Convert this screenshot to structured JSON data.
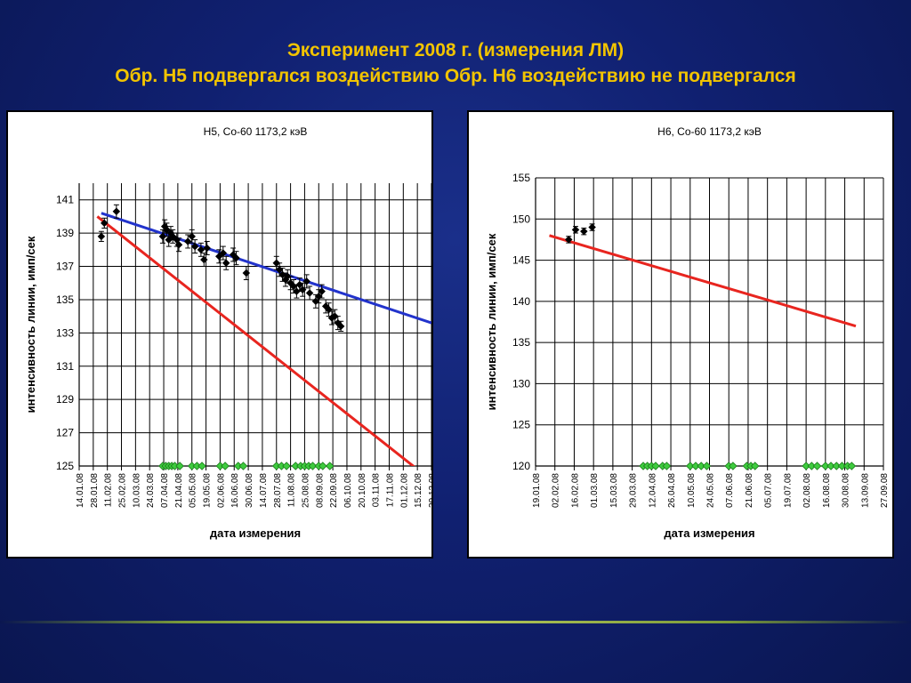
{
  "slide": {
    "title_line1": "Эксперимент 2008 г. (измерения ЛМ)",
    "title_line2": "Обр. Н5 подвергался воздействию   Обр. Н6 воздействию не подвергался",
    "background_color": "#102070",
    "title_color": "#f2c400"
  },
  "chart_data": [
    {
      "type": "scatter",
      "title": "Н5, Co-60 1173,2 кэВ",
      "xlabel": "дата измерения",
      "ylabel": "интенсивность линии, имп/сек",
      "x_ticks": [
        "14.01.08",
        "28.01.08",
        "11.02.08",
        "25.02.08",
        "10.03.08",
        "24.03.08",
        "07.04.08",
        "21.04.08",
        "05.05.08",
        "19.05.08",
        "02.06.08",
        "16.06.08",
        "30.06.08",
        "14.07.08",
        "28.07.08",
        "11.08.08",
        "25.08.08",
        "08.09.08",
        "22.09.08",
        "06.10.08",
        "20.10.08",
        "03.11.08",
        "17.11.08",
        "01.12.08",
        "15.12.08",
        "29.12.08"
      ],
      "xlim": [
        "2008-01-14",
        "2008-12-29"
      ],
      "y_ticks": [
        125,
        127,
        129,
        131,
        133,
        135,
        137,
        139,
        141
      ],
      "ylim": [
        125,
        142
      ],
      "grid": true,
      "measurements": [
        {
          "x": "2008-02-05",
          "y": 138.8,
          "err": 0.3
        },
        {
          "x": "2008-02-08",
          "y": 139.6,
          "err": 0.3
        },
        {
          "x": "2008-02-20",
          "y": 140.3,
          "err": 0.4
        },
        {
          "x": "2008-04-06",
          "y": 138.8,
          "err": 0.4
        },
        {
          "x": "2008-04-08",
          "y": 139.4,
          "err": 0.4
        },
        {
          "x": "2008-04-10",
          "y": 139.2,
          "err": 0.4
        },
        {
          "x": "2008-04-12",
          "y": 138.6,
          "err": 0.4
        },
        {
          "x": "2008-04-14",
          "y": 139.0,
          "err": 0.4
        },
        {
          "x": "2008-04-16",
          "y": 138.8,
          "err": 0.4
        },
        {
          "x": "2008-04-20",
          "y": 138.6,
          "err": 0.4
        },
        {
          "x": "2008-04-22",
          "y": 138.3,
          "err": 0.4
        },
        {
          "x": "2008-05-01",
          "y": 138.5,
          "err": 0.4
        },
        {
          "x": "2008-05-05",
          "y": 138.8,
          "err": 0.4
        },
        {
          "x": "2008-05-08",
          "y": 138.2,
          "err": 0.4
        },
        {
          "x": "2008-05-14",
          "y": 138.0,
          "err": 0.4
        },
        {
          "x": "2008-05-17",
          "y": 137.4,
          "err": 0.4
        },
        {
          "x": "2008-05-20",
          "y": 138.1,
          "err": 0.4
        },
        {
          "x": "2008-06-01",
          "y": 137.6,
          "err": 0.4
        },
        {
          "x": "2008-06-05",
          "y": 137.8,
          "err": 0.4
        },
        {
          "x": "2008-06-08",
          "y": 137.2,
          "err": 0.4
        },
        {
          "x": "2008-06-15",
          "y": 137.7,
          "err": 0.4
        },
        {
          "x": "2008-06-18",
          "y": 137.5,
          "err": 0.4
        },
        {
          "x": "2008-06-28",
          "y": 136.6,
          "err": 0.4
        },
        {
          "x": "2008-07-28",
          "y": 137.2,
          "err": 0.4
        },
        {
          "x": "2008-07-31",
          "y": 136.8,
          "err": 0.4
        },
        {
          "x": "2008-08-03",
          "y": 136.5,
          "err": 0.4
        },
        {
          "x": "2008-08-06",
          "y": 136.2,
          "err": 0.4
        },
        {
          "x": "2008-08-08",
          "y": 136.4,
          "err": 0.4
        },
        {
          "x": "2008-08-11",
          "y": 136.0,
          "err": 0.4
        },
        {
          "x": "2008-08-14",
          "y": 135.8,
          "err": 0.4
        },
        {
          "x": "2008-08-17",
          "y": 135.5,
          "err": 0.4
        },
        {
          "x": "2008-08-20",
          "y": 135.9,
          "err": 0.4
        },
        {
          "x": "2008-08-23",
          "y": 135.6,
          "err": 0.4
        },
        {
          "x": "2008-08-27",
          "y": 136.1,
          "err": 0.4
        },
        {
          "x": "2008-08-30",
          "y": 135.4,
          "err": 0.4
        },
        {
          "x": "2008-09-05",
          "y": 134.9,
          "err": 0.4
        },
        {
          "x": "2008-09-08",
          "y": 135.2,
          "err": 0.4
        },
        {
          "x": "2008-09-11",
          "y": 135.5,
          "err": 0.4
        },
        {
          "x": "2008-09-15",
          "y": 134.6,
          "err": 0.4
        },
        {
          "x": "2008-09-18",
          "y": 134.4,
          "err": 0.4
        },
        {
          "x": "2008-09-21",
          "y": 133.9,
          "err": 0.4
        },
        {
          "x": "2008-09-24",
          "y": 134.0,
          "err": 0.4
        },
        {
          "x": "2008-09-27",
          "y": 133.6,
          "err": 0.4
        },
        {
          "x": "2008-09-30",
          "y": 133.4,
          "err": 0.3
        }
      ],
      "markers_baseline": {
        "y": 125,
        "x": [
          "2008-04-06",
          "2008-04-09",
          "2008-04-12",
          "2008-04-15",
          "2008-04-18",
          "2008-04-23",
          "2008-05-05",
          "2008-05-10",
          "2008-05-15",
          "2008-06-02",
          "2008-06-07",
          "2008-06-20",
          "2008-06-25",
          "2008-07-28",
          "2008-08-02",
          "2008-08-07",
          "2008-08-16",
          "2008-08-21",
          "2008-08-25",
          "2008-08-29",
          "2008-09-02",
          "2008-09-08",
          "2008-09-12",
          "2008-09-19"
        ]
      },
      "trend_lines": [
        {
          "color": "#2233cc",
          "x": [
            "2008-02-05",
            "2008-12-29"
          ],
          "y": [
            140.2,
            133.6
          ]
        },
        {
          "color": "#e8251f",
          "x": [
            "2008-02-01",
            "2008-12-15"
          ],
          "y": [
            140.0,
            124.8
          ]
        }
      ]
    },
    {
      "type": "scatter",
      "title": "Н6, Co-60 1173,2 кэВ",
      "xlabel": "дата измерения",
      "ylabel": "интенсивность линии, имп/сек",
      "x_ticks": [
        "19.01.08",
        "02.02.08",
        "16.02.08",
        "01.03.08",
        "15.03.08",
        "29.03.08",
        "12.04.08",
        "26.04.08",
        "10.05.08",
        "24.05.08",
        "07.06.08",
        "21.06.08",
        "05.07.08",
        "19.07.08",
        "02.08.08",
        "16.08.08",
        "30.08.08",
        "13.09.08",
        "27.09.08"
      ],
      "xlim": [
        "2008-01-19",
        "2008-09-27"
      ],
      "y_ticks": [
        120,
        125,
        130,
        135,
        140,
        145,
        150,
        155
      ],
      "ylim": [
        120,
        155
      ],
      "grid": true,
      "measurements": [
        {
          "x": "2008-02-12",
          "y": 147.5,
          "err": 0.4
        },
        {
          "x": "2008-02-17",
          "y": 148.7,
          "err": 0.4
        },
        {
          "x": "2008-02-23",
          "y": 148.5,
          "err": 0.4
        },
        {
          "x": "2008-02-29",
          "y": 149.0,
          "err": 0.4
        }
      ],
      "markers_baseline": {
        "y": 120,
        "x": [
          "2008-04-06",
          "2008-04-09",
          "2008-04-12",
          "2008-04-15",
          "2008-04-20",
          "2008-04-23",
          "2008-05-10",
          "2008-05-14",
          "2008-05-18",
          "2008-05-22",
          "2008-06-07",
          "2008-06-10",
          "2008-06-20",
          "2008-06-23",
          "2008-06-26",
          "2008-08-02",
          "2008-08-06",
          "2008-08-10",
          "2008-08-16",
          "2008-08-20",
          "2008-08-24",
          "2008-08-28",
          "2008-09-01",
          "2008-09-04"
        ]
      },
      "trend_lines": [
        {
          "color": "#e8251f",
          "x": [
            "2008-01-29",
            "2008-09-07"
          ],
          "y": [
            148.0,
            137.0
          ]
        }
      ]
    }
  ]
}
